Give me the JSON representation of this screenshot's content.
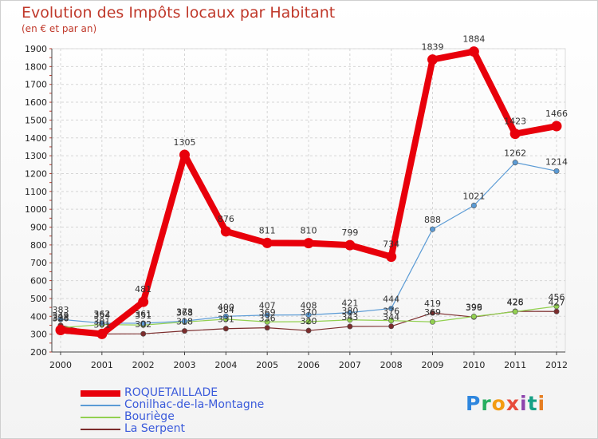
{
  "title": "Evolution des Impôts locaux par Habitant",
  "subtitle": "(en € et par an)",
  "logo": "Proxiti",
  "logo_letters": [
    {
      "ch": "P",
      "color": "#2e86de"
    },
    {
      "ch": "r",
      "color": "#27ae60"
    },
    {
      "ch": "o",
      "color": "#f39c12"
    },
    {
      "ch": "x",
      "color": "#e74c3c"
    },
    {
      "ch": "i",
      "color": "#8e44ad"
    },
    {
      "ch": "t",
      "color": "#16a085"
    },
    {
      "ch": "i",
      "color": "#e67e22"
    }
  ],
  "chart_data": {
    "type": "line",
    "title": "Evolution des Impôts locaux par Habitant",
    "ylabel": "(en € et par an)",
    "xlabel": "",
    "x": [
      "2000",
      "2001",
      "2002",
      "2003",
      "2004",
      "2005",
      "2006",
      "2007",
      "2008",
      "2009",
      "2010",
      "2011",
      "2012"
    ],
    "ylim": [
      200,
      1900
    ],
    "yticks": [
      200,
      300,
      400,
      500,
      600,
      700,
      800,
      900,
      1000,
      1100,
      1200,
      1300,
      1400,
      1500,
      1600,
      1700,
      1800,
      1900
    ],
    "grid": true,
    "legend_position": "bottom-left",
    "series": [
      {
        "name": "ROQUETAILLADE",
        "color": "#e8000b",
        "width": "bold",
        "values": [
          323,
          301,
          481,
          1305,
          876,
          811,
          810,
          799,
          734,
          1839,
          1884,
          1423,
          1466
        ],
        "labels": [
          "323",
          "301",
          "481",
          "1305",
          "876",
          "811",
          "810",
          "799",
          "734",
          "1839",
          "1884",
          "1423",
          "1466"
        ]
      },
      {
        "name": "Conilhac-de-la-Montagne",
        "color": "#5b9bd5",
        "width": "thin",
        "values": [
          383,
          362,
          361,
          373,
          400,
          407,
          408,
          421,
          444,
          888,
          1021,
          1262,
          1214
        ],
        "labels": [
          "383",
          "362",
          "361",
          "373",
          "400",
          "407",
          "408",
          "421",
          "444",
          "888",
          "1021",
          "1262",
          "1214"
        ]
      },
      {
        "name": "Bouriège",
        "color": "#92d050",
        "width": "thin",
        "values": [
          336,
          354,
          351,
          368,
          384,
          369,
          370,
          380,
          376,
          369,
          399,
          426,
          456
        ],
        "labels": [
          "336",
          "354",
          "351",
          "368",
          "384",
          "369",
          "370",
          "380",
          "376",
          "369",
          "399",
          "426",
          "456"
        ]
      },
      {
        "name": "La Serpent",
        "color": "#7b2c2c",
        "width": "thin",
        "values": [
          349,
          301,
          302,
          318,
          331,
          336,
          320,
          343,
          344,
          419,
          396,
          428,
          427
        ],
        "labels": [
          "349",
          "301",
          "302",
          "318",
          "331",
          "336",
          "320",
          "343",
          "344",
          "419",
          "396",
          "428",
          "427"
        ]
      }
    ]
  }
}
